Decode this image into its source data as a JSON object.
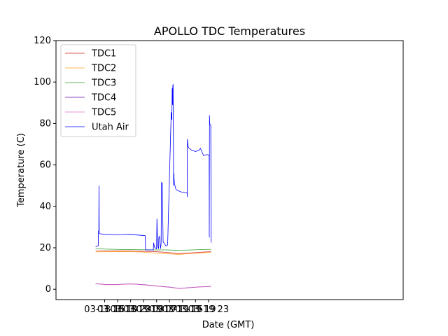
{
  "chart_data": {
    "type": "line",
    "title": "APOLLO TDC Temperatures",
    "xlabel": "Date (GMT)",
    "ylabel": "Temperature (C)",
    "xlim": [
      0,
      107
    ],
    "ylim": [
      -5,
      120
    ],
    "yticks": [
      0,
      20,
      40,
      60,
      80,
      100,
      120
    ],
    "xticks": [
      {
        "x": 15,
        "label": "03-18 15"
      },
      {
        "x": 19,
        "label": "03-18 19"
      },
      {
        "x": 23,
        "label": "03-18 23"
      },
      {
        "x": 27,
        "label": "03-19 03"
      },
      {
        "x": 31,
        "label": "03-19 07"
      },
      {
        "x": 35,
        "label": "03-19 11"
      },
      {
        "x": 39,
        "label": "03-19 15"
      },
      {
        "x": 43,
        "label": "03-19 19"
      },
      {
        "x": 47,
        "label": "03-19 23"
      }
    ],
    "x_unit": "hours from 03-18 00 GMT",
    "legend_location": "upper-left",
    "series": [
      {
        "name": "TDC1",
        "color": "#d62728",
        "x": [
          12.2,
          20,
          30,
          34,
          38,
          42,
          46,
          47.8
        ],
        "y": [
          18.5,
          18.5,
          18.2,
          17.8,
          17.2,
          17.6,
          18.0,
          18.1
        ]
      },
      {
        "name": "TDC2",
        "color": "#ff9f1c",
        "x": [
          12.2,
          20,
          26,
          30,
          34,
          38,
          42,
          46,
          47.8
        ],
        "y": [
          18.0,
          18.2,
          18.0,
          17.5,
          17.2,
          16.8,
          17.3,
          17.7,
          17.8
        ]
      },
      {
        "name": "TDC3",
        "color": "#2ca02c",
        "x": [
          12.2,
          20,
          30,
          34,
          38,
          42,
          46,
          47.8
        ],
        "y": [
          19.5,
          19.2,
          19.0,
          19.0,
          18.8,
          19.0,
          19.2,
          19.3
        ]
      },
      {
        "name": "TDC4",
        "color": "#6a0dad",
        "x": [
          12.2,
          15,
          19,
          23,
          27,
          31,
          35,
          38,
          42,
          46,
          47.8
        ],
        "y": [
          2.7,
          2.3,
          2.3,
          2.6,
          2.2,
          1.6,
          1.0,
          0.4,
          0.9,
          1.3,
          1.4
        ]
      },
      {
        "name": "TDC5",
        "color": "#e377c2",
        "x": [
          12.2,
          15,
          19,
          23,
          27,
          31,
          35,
          38,
          42,
          46,
          47.8
        ],
        "y": [
          2.6,
          2.2,
          2.2,
          2.5,
          2.1,
          1.5,
          0.9,
          0.3,
          0.8,
          1.2,
          1.3
        ]
      },
      {
        "name": "Utah Air",
        "color": "#0000ff",
        "x": [
          12.2,
          13.0,
          13.1,
          13.2,
          13.25,
          13.3,
          13.35,
          13.4,
          13.5,
          15,
          19,
          23,
          27.5,
          27.6,
          29.5,
          30.0,
          30.1,
          30.3,
          30.5,
          31.0,
          31.1,
          31.3,
          31.6,
          31.7,
          31.9,
          32.1,
          32.2,
          32.4,
          32.5,
          32.8,
          33.0,
          33.2,
          33.5,
          33.6,
          33.8,
          34.2,
          34.4,
          35.5,
          35.6,
          35.7,
          35.8,
          35.9,
          36.0,
          36.05,
          36.1,
          36.2,
          36.25,
          36.3,
          36.4,
          36.5,
          37.0,
          38.5,
          40.4,
          40.45,
          40.5,
          40.7,
          41.0,
          41.5,
          42.0,
          43.0,
          44.0,
          44.5,
          45.5,
          46.5,
          47.0,
          47.2,
          47.25,
          47.3,
          47.4,
          47.5,
          47.7,
          47.8
        ],
        "y": [
          20.5,
          21.0,
          28.0,
          28.0,
          50.0,
          28.0,
          27.0,
          27.0,
          26.8,
          26.5,
          26.3,
          26.5,
          25.8,
          19.0,
          19.0,
          19.0,
          22.5,
          20.5,
          20.0,
          19.5,
          34.0,
          21.0,
          19.5,
          25.0,
          25.5,
          22.0,
          19.5,
          22.0,
          51.5,
          51.0,
          23.0,
          22.5,
          22.0,
          21.5,
          21.0,
          21.0,
          21.5,
          85.5,
          82.0,
          82.0,
          97.0,
          89.0,
          98.5,
          89.0,
          99.0,
          71.0,
          50.0,
          56.0,
          53.0,
          51.0,
          48.0,
          47.0,
          46.5,
          44.5,
          72.5,
          69.0,
          68.0,
          67.5,
          67.0,
          66.5,
          67.0,
          68.0,
          64.5,
          65.0,
          64.8,
          64.5,
          25.0,
          84.0,
          80.0,
          79.5,
          79.0,
          22.5
        ]
      }
    ]
  }
}
